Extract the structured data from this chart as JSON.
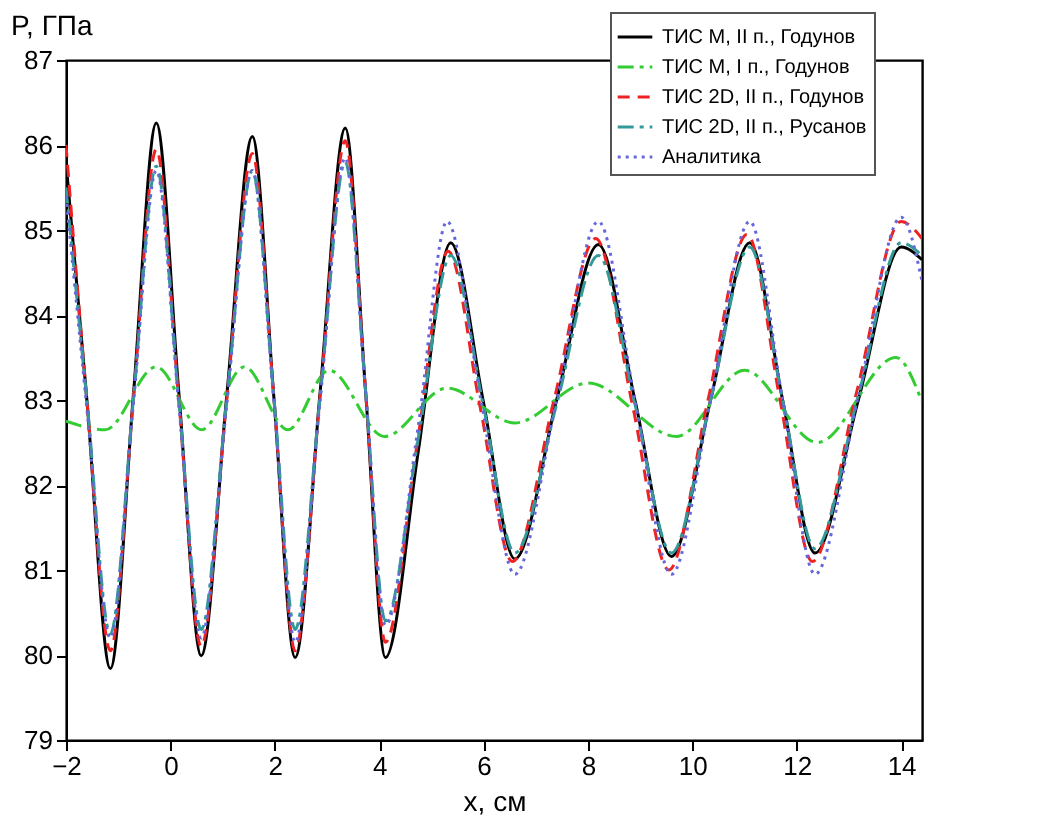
{
  "chart_data": {
    "type": "line",
    "xlabel": "x, см",
    "ylabel": "P, ГПа",
    "xlim": [
      -2,
      14.4
    ],
    "xticks": [
      -2,
      0,
      2,
      4,
      6,
      8,
      10,
      12,
      14
    ],
    "ylim": [
      79,
      87
    ],
    "yticks": [
      79,
      80,
      81,
      82,
      83,
      84,
      85,
      86,
      87
    ],
    "grid": false,
    "legend": "top right",
    "marker": "none",
    "series": [
      {
        "name": "ТИС М, II п., Годунов",
        "color": "#000000",
        "line_style": "solid",
        "x": [
          -2,
          -1.6,
          -1.15,
          -0.71,
          -0.27,
          0.16,
          0.59,
          1.08,
          1.57,
          1.98,
          2.39,
          2.87,
          3.35,
          3.74,
          4.12,
          4.75,
          5.37,
          5.99,
          6.6,
          7.4,
          8.2,
          8.9,
          9.6,
          10.35,
          11.1,
          11.73,
          12.35,
          13.18,
          14.0,
          14.4
        ],
        "values": [
          85.8,
          83.0,
          79.84,
          83.05,
          86.26,
          83.1,
          79.99,
          83.05,
          86.1,
          83.05,
          79.97,
          83.1,
          86.2,
          83.1,
          79.97,
          82.4,
          84.85,
          83.0,
          81.13,
          83.0,
          84.83,
          83.0,
          81.16,
          83.0,
          84.85,
          83.0,
          81.2,
          83.0,
          84.8,
          84.65
        ]
      },
      {
        "name": "ТИС М, I п., Годунов",
        "color": "#33cc33",
        "line_style": "dashdot",
        "x": [
          -2,
          -1.25,
          -0.27,
          0.6,
          1.42,
          2.25,
          3.04,
          4.1,
          5.3,
          6.6,
          8.0,
          9.7,
          11.0,
          12.4,
          13.9,
          14.4
        ],
        "values": [
          82.75,
          82.65,
          83.39,
          82.65,
          83.39,
          82.65,
          83.35,
          82.57,
          83.14,
          82.73,
          83.2,
          82.57,
          83.35,
          82.5,
          83.5,
          82.98
        ]
      },
      {
        "name": "ТИС 2D, II п., Годунов",
        "color": "#ee2222",
        "line_style": "dashed",
        "x": [
          -2,
          -1.6,
          -1.15,
          -0.71,
          -0.27,
          0.16,
          0.59,
          1.08,
          1.57,
          1.98,
          2.39,
          2.87,
          3.35,
          3.74,
          4.12,
          4.72,
          5.32,
          5.94,
          6.55,
          7.35,
          8.15,
          8.85,
          9.55,
          10.3,
          11.05,
          11.68,
          12.3,
          13.15,
          14.0,
          14.4
        ],
        "values": [
          86.0,
          83.0,
          80.05,
          83.0,
          85.95,
          83.0,
          80.1,
          83.0,
          85.9,
          83.05,
          80.05,
          83.05,
          86.05,
          83.1,
          80.15,
          82.45,
          84.75,
          82.9,
          81.1,
          83.0,
          84.9,
          82.95,
          81.0,
          83.0,
          84.95,
          83.0,
          81.1,
          83.1,
          85.1,
          84.9
        ]
      },
      {
        "name": "ТИС 2D, II п., Русанов",
        "color": "#339999",
        "line_style": "dashdot",
        "x": [
          -2,
          -1.6,
          -1.15,
          -0.71,
          -0.27,
          0.16,
          0.59,
          1.08,
          1.57,
          1.98,
          2.39,
          2.87,
          3.35,
          3.74,
          4.12,
          4.75,
          5.37,
          5.99,
          6.6,
          7.4,
          8.2,
          8.9,
          9.6,
          10.35,
          11.1,
          11.73,
          12.35,
          13.18,
          14.0,
          14.4
        ],
        "values": [
          85.5,
          83.0,
          80.25,
          83.0,
          85.75,
          83.0,
          80.3,
          83.0,
          85.7,
          83.05,
          80.3,
          83.05,
          85.8,
          83.1,
          80.4,
          82.55,
          84.7,
          82.95,
          81.2,
          82.95,
          84.7,
          82.95,
          81.2,
          83.0,
          84.8,
          83.0,
          81.25,
          83.05,
          84.85,
          84.7
        ]
      },
      {
        "name": "Аналитика",
        "color": "#6666dd",
        "line_style": "dotted",
        "x": [
          -2,
          -1.6,
          -1.15,
          -0.71,
          -0.27,
          0.16,
          0.59,
          1.08,
          1.57,
          1.98,
          2.39,
          2.87,
          3.35,
          3.74,
          4.12,
          4.75,
          5.3,
          5.95,
          6.6,
          7.4,
          8.2,
          8.9,
          9.6,
          10.35,
          11.1,
          11.73,
          12.35,
          13.18,
          14.0,
          14.4
        ],
        "values": [
          85.4,
          82.9,
          80.2,
          82.95,
          85.7,
          82.95,
          80.2,
          82.95,
          85.7,
          83.0,
          80.15,
          83.0,
          85.85,
          83.1,
          80.35,
          82.7,
          85.1,
          83.0,
          80.95,
          83.0,
          85.1,
          83.0,
          80.95,
          83.0,
          85.1,
          83.0,
          80.95,
          83.05,
          85.15,
          84.4
        ]
      }
    ]
  }
}
